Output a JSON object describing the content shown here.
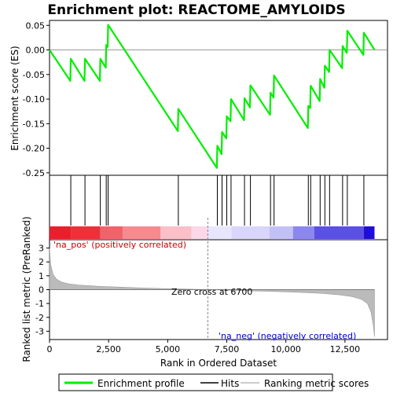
{
  "chart_data": {
    "type": "line",
    "title": "Enrichment plot: REACTOME_AMYLOIDS",
    "xlabel": "Rank in Ordered Dataset",
    "ylabel_top": "Enrichment score (ES)",
    "ylabel_bottom": "Ranked list metric (PreRanked)",
    "xlim": [
      0,
      14300
    ],
    "x_ticks": [
      0,
      2500,
      5000,
      7500,
      10000,
      12500
    ],
    "x_tick_labels": [
      "0",
      "2,500",
      "5,000",
      "7,500",
      "10,000",
      "12,500"
    ],
    "es_ylim": [
      -0.255,
      0.06
    ],
    "es_ticks": [
      0.05,
      0.0,
      -0.05,
      -0.1,
      -0.15,
      -0.2,
      -0.25
    ],
    "es_tick_labels": [
      "0.05",
      "0.00",
      "-0.05",
      "-0.10",
      "-0.15",
      "-0.20",
      "-0.25"
    ],
    "metric_ylim": [
      -3.6,
      3.6
    ],
    "metric_ticks": [
      3,
      2,
      1,
      0,
      -1,
      -2,
      -3
    ],
    "metric_tick_labels": [
      "3",
      "2",
      "1",
      "0",
      "-1",
      "-2",
      "-3"
    ],
    "hits": [
      900,
      1500,
      2150,
      2400,
      2480,
      5450,
      7100,
      7300,
      7500,
      7680,
      8250,
      8500,
      9350,
      9500,
      10950,
      11050,
      11450,
      11650,
      11850,
      12400,
      12600,
      13300
    ],
    "es_points": [
      [
        0,
        0.0
      ],
      [
        880,
        -0.063
      ],
      [
        900,
        -0.018
      ],
      [
        1480,
        -0.063
      ],
      [
        1500,
        -0.018
      ],
      [
        2130,
        -0.063
      ],
      [
        2150,
        -0.018
      ],
      [
        2380,
        -0.036
      ],
      [
        2400,
        0.01
      ],
      [
        2460,
        0.006
      ],
      [
        2480,
        0.051
      ],
      [
        5430,
        -0.165
      ],
      [
        5450,
        -0.12
      ],
      [
        7080,
        -0.24
      ],
      [
        7100,
        -0.195
      ],
      [
        7280,
        -0.212
      ],
      [
        7300,
        -0.167
      ],
      [
        7480,
        -0.18
      ],
      [
        7500,
        -0.135
      ],
      [
        7660,
        -0.145
      ],
      [
        7680,
        -0.1
      ],
      [
        8230,
        -0.143
      ],
      [
        8250,
        -0.098
      ],
      [
        8480,
        -0.117
      ],
      [
        8500,
        -0.072
      ],
      [
        9330,
        -0.132
      ],
      [
        9350,
        -0.087
      ],
      [
        9480,
        -0.097
      ],
      [
        9500,
        -0.052
      ],
      [
        10930,
        -0.159
      ],
      [
        10950,
        -0.114
      ],
      [
        11030,
        -0.118
      ],
      [
        11050,
        -0.073
      ],
      [
        11430,
        -0.104
      ],
      [
        11450,
        -0.059
      ],
      [
        11630,
        -0.077
      ],
      [
        11650,
        -0.032
      ],
      [
        11830,
        -0.045
      ],
      [
        11850,
        0.0
      ],
      [
        12380,
        -0.037
      ],
      [
        12400,
        0.008
      ],
      [
        12580,
        -0.006
      ],
      [
        12600,
        0.039
      ],
      [
        13280,
        -0.01
      ],
      [
        13300,
        0.035
      ],
      [
        13750,
        0.0
      ]
    ],
    "metric_curve": [
      [
        0,
        3.0
      ],
      [
        50,
        1.8
      ],
      [
        150,
        1.1
      ],
      [
        300,
        0.75
      ],
      [
        500,
        0.55
      ],
      [
        800,
        0.42
      ],
      [
        1200,
        0.34
      ],
      [
        2000,
        0.25
      ],
      [
        3000,
        0.18
      ],
      [
        4000,
        0.12
      ],
      [
        5000,
        0.07
      ],
      [
        6000,
        0.03
      ],
      [
        6700,
        0.0
      ],
      [
        7500,
        -0.04
      ],
      [
        8500,
        -0.08
      ],
      [
        9500,
        -0.13
      ],
      [
        10500,
        -0.19
      ],
      [
        11500,
        -0.27
      ],
      [
        12300,
        -0.38
      ],
      [
        12800,
        -0.5
      ],
      [
        13200,
        -0.7
      ],
      [
        13450,
        -1.0
      ],
      [
        13600,
        -1.6
      ],
      [
        13700,
        -2.6
      ],
      [
        13750,
        -3.4
      ]
    ],
    "zero_cross_rank": 6700,
    "annotations": {
      "pos": "'na_pos' (positively correlated)",
      "neg": "'na_neg' (negatively correlated)",
      "zero": "Zero cross at 6700"
    },
    "legend": [
      "Enrichment profile",
      "Hits",
      "Ranking metric scores"
    ],
    "colors": {
      "es_line": "#00ee00",
      "hit": "#000000",
      "metric_fill": "#bbbbbb",
      "pos_text": "#cc0000",
      "neg_text": "#0000cc",
      "frame": "#000000"
    },
    "color_band": [
      [
        0,
        "#e8202c"
      ],
      [
        900,
        "#ee3038"
      ],
      [
        2150,
        "#f36169"
      ],
      [
        3100,
        "#f8898f"
      ],
      [
        4700,
        "#fbbfc7"
      ],
      [
        6000,
        "#fcd7e8"
      ],
      [
        6700,
        "#e8e6ff"
      ],
      [
        7700,
        "#d8d6fa"
      ],
      [
        9300,
        "#c3c0f7"
      ],
      [
        10300,
        "#8c86ef"
      ],
      [
        11200,
        "#5a4fe6"
      ],
      [
        13300,
        "#1e0ed8"
      ],
      [
        13750,
        null
      ]
    ]
  }
}
